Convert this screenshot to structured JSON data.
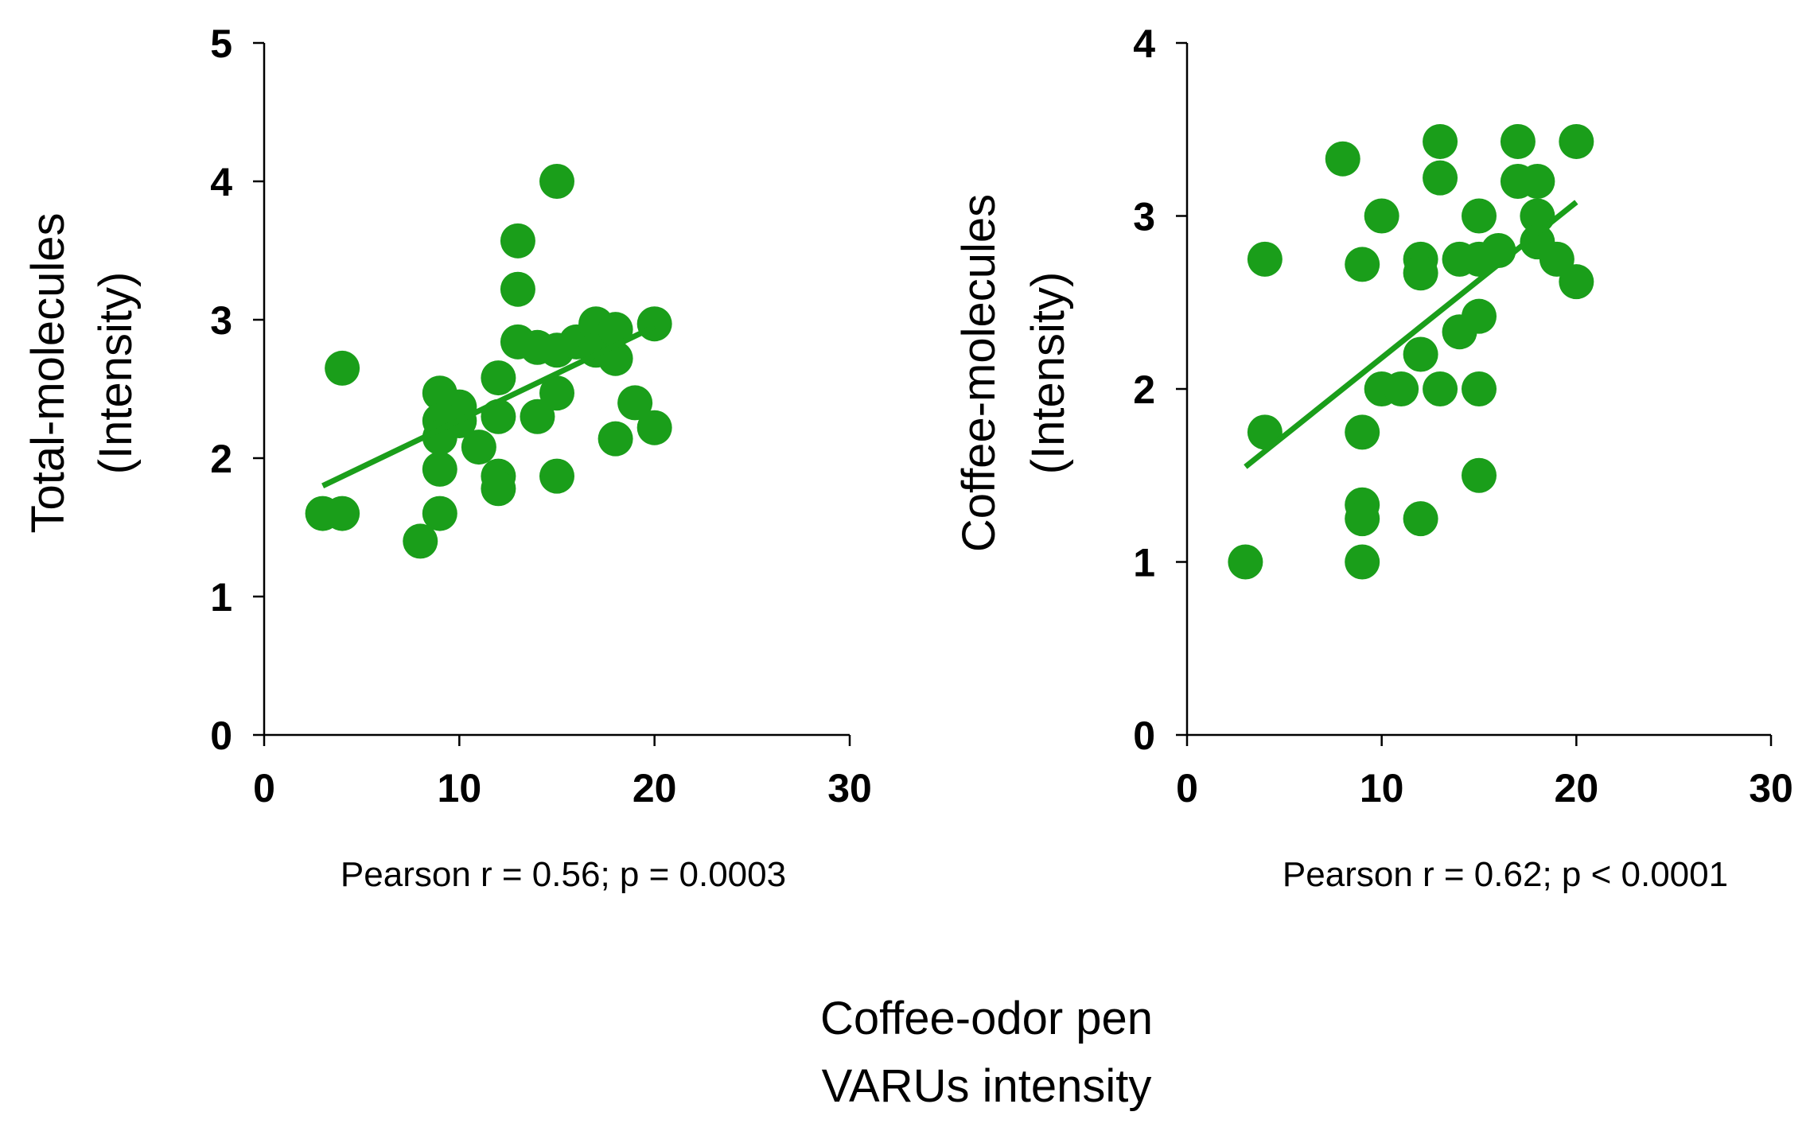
{
  "shared_xlabel": [
    "Coffee-odor pen",
    "VARUs intensity"
  ],
  "colors": {
    "points": "#1a9e1a",
    "fit": "#1a9e1a",
    "axis": "#000000"
  },
  "chart_data": [
    {
      "type": "scatter",
      "title": "",
      "xlabel": "Coffee-odor pen VARUs intensity",
      "ylabel": [
        "Total-molecules",
        "(Intensity)"
      ],
      "xlim": [
        0,
        30
      ],
      "ylim": [
        0,
        5
      ],
      "xticks": [
        0,
        10,
        20,
        30
      ],
      "yticks": [
        0,
        1,
        2,
        3,
        4,
        5
      ],
      "xtick_labels": [
        "0",
        "10",
        "20",
        "30"
      ],
      "ytick_labels": [
        "0",
        "1",
        "2",
        "3",
        "4",
        "5"
      ],
      "grid": false,
      "stat_text": "Pearson r = 0.56; p = 0.0003",
      "points": [
        [
          3,
          1.6
        ],
        [
          4,
          2.65
        ],
        [
          4,
          1.6
        ],
        [
          8,
          1.4
        ],
        [
          9,
          2.47
        ],
        [
          9,
          2.27
        ],
        [
          9,
          2.15
        ],
        [
          9,
          1.92
        ],
        [
          9,
          1.6
        ],
        [
          10,
          2.37
        ],
        [
          10,
          2.27
        ],
        [
          11,
          2.08
        ],
        [
          12,
          2.58
        ],
        [
          12,
          2.3
        ],
        [
          12,
          1.87
        ],
        [
          12,
          1.78
        ],
        [
          13,
          3.57
        ],
        [
          13,
          3.22
        ],
        [
          13,
          2.84
        ],
        [
          14,
          2.8
        ],
        [
          14,
          2.3
        ],
        [
          15,
          4.0
        ],
        [
          15,
          2.78
        ],
        [
          15,
          2.47
        ],
        [
          15,
          1.87
        ],
        [
          16,
          2.84
        ],
        [
          17,
          2.97
        ],
        [
          17,
          2.78
        ],
        [
          18,
          2.93
        ],
        [
          18,
          2.72
        ],
        [
          18,
          2.14
        ],
        [
          19,
          2.4
        ],
        [
          20,
          2.97
        ],
        [
          20,
          2.22
        ]
      ],
      "fit_line": {
        "x": [
          3,
          20
        ],
        "y": [
          1.8,
          2.95
        ]
      }
    },
    {
      "type": "scatter",
      "title": "",
      "xlabel": "Coffee-odor pen VARUs intensity",
      "ylabel": [
        "Coffee-molecules",
        "(Intensity)"
      ],
      "xlim": [
        0,
        30
      ],
      "ylim": [
        0,
        4
      ],
      "xticks": [
        0,
        10,
        20,
        30
      ],
      "yticks": [
        0,
        1,
        2,
        3,
        4
      ],
      "xtick_labels": [
        "0",
        "10",
        "20",
        "30"
      ],
      "ytick_labels": [
        "0",
        "1",
        "2",
        "3",
        "4"
      ],
      "grid": false,
      "stat_text": "Pearson r = 0.62; p < 0.0001",
      "points": [
        [
          3,
          1.0
        ],
        [
          4,
          2.75
        ],
        [
          4,
          1.75
        ],
        [
          8,
          3.33
        ],
        [
          9,
          2.72
        ],
        [
          9,
          1.75
        ],
        [
          9,
          1.33
        ],
        [
          9,
          1.25
        ],
        [
          9,
          1.0
        ],
        [
          10,
          3.0
        ],
        [
          10,
          2.0
        ],
        [
          11,
          2.0
        ],
        [
          12,
          2.75
        ],
        [
          12,
          2.67
        ],
        [
          12,
          2.2
        ],
        [
          12,
          1.25
        ],
        [
          13,
          3.43
        ],
        [
          13,
          3.22
        ],
        [
          13,
          2.0
        ],
        [
          14,
          2.75
        ],
        [
          14,
          2.33
        ],
        [
          15,
          3.0
        ],
        [
          15,
          2.75
        ],
        [
          15,
          2.42
        ],
        [
          15,
          2.0
        ],
        [
          15,
          1.5
        ],
        [
          16,
          2.8
        ],
        [
          17,
          3.43
        ],
        [
          17,
          3.2
        ],
        [
          18,
          3.2
        ],
        [
          18,
          3.0
        ],
        [
          18,
          2.85
        ],
        [
          19,
          2.75
        ],
        [
          20,
          3.43
        ],
        [
          20,
          2.62
        ]
      ],
      "fit_line": {
        "x": [
          3,
          20
        ],
        "y": [
          1.55,
          3.08
        ]
      }
    }
  ]
}
